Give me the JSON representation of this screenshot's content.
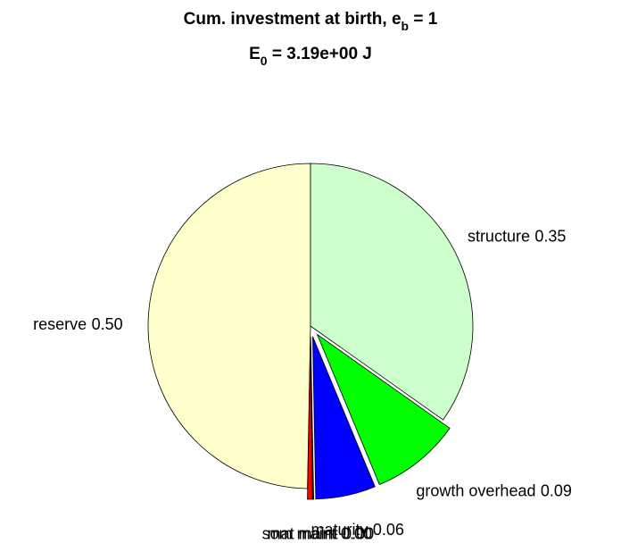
{
  "chart_data": {
    "type": "pie",
    "title": [
      "Cum. investment at birth, e",
      "b",
      " = 1"
    ],
    "subtitle": [
      "E",
      "0",
      " = 3.19e+00 J"
    ],
    "categories": [
      "reserve",
      "som maint",
      "mat maint",
      "maturity",
      "growth overhead",
      "structure"
    ],
    "values": [
      0.5,
      0.005,
      0.001,
      0.06,
      0.09,
      0.35
    ],
    "value_labels": [
      "0.50",
      "0.00",
      "0.00",
      "0.06",
      "0.09",
      "0.35"
    ],
    "colors": [
      "#ffffcc",
      "#ff0000",
      "#800000",
      "#0000ff",
      "#00ff00",
      "#ccffcc"
    ],
    "explode": [
      false,
      true,
      true,
      true,
      true,
      false
    ]
  }
}
